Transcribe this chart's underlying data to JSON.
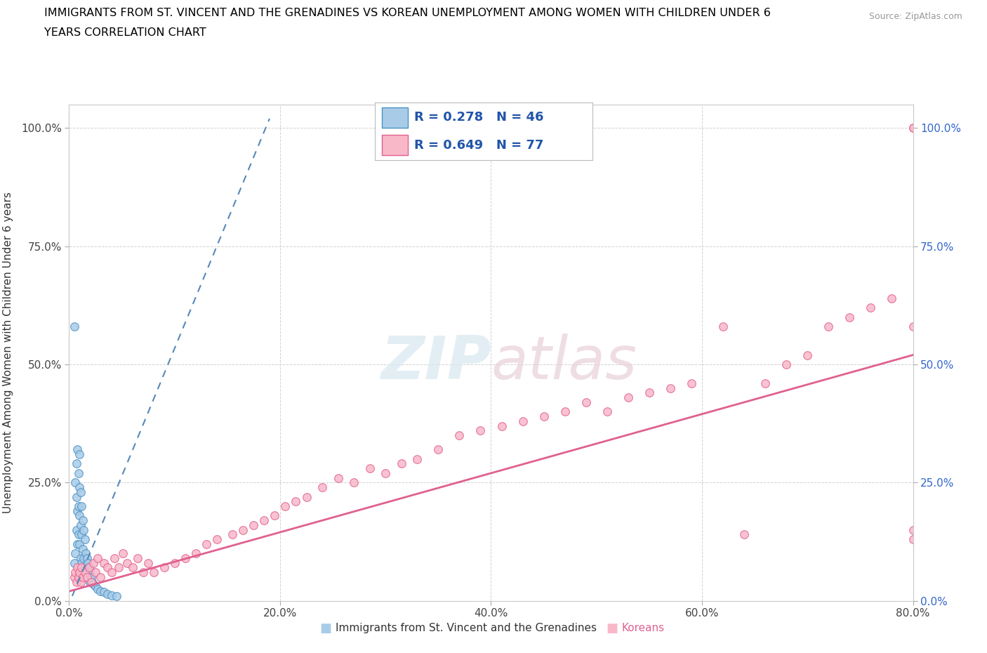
{
  "title_line1": "IMMIGRANTS FROM ST. VINCENT AND THE GRENADINES VS KOREAN UNEMPLOYMENT AMONG WOMEN WITH CHILDREN UNDER 6",
  "title_line2": "YEARS CORRELATION CHART",
  "source": "Source: ZipAtlas.com",
  "ylabel": "Unemployment Among Women with Children Under 6 years",
  "xlim": [
    0.0,
    0.8
  ],
  "ylim": [
    0.0,
    1.05
  ],
  "xticks": [
    0.0,
    0.2,
    0.4,
    0.6,
    0.8
  ],
  "xtick_labels": [
    "0.0%",
    "20.0%",
    "40.0%",
    "60.0%",
    "80.0%"
  ],
  "yticks": [
    0.0,
    0.25,
    0.5,
    0.75,
    1.0
  ],
  "ytick_labels": [
    "0.0%",
    "25.0%",
    "50.0%",
    "75.0%",
    "100.0%"
  ],
  "legend_R1": "0.278",
  "legend_N1": "46",
  "legend_R2": "0.649",
  "legend_N2": "77",
  "blue_face": "#a8cce8",
  "blue_edge": "#4a90c4",
  "pink_face": "#f9b8c8",
  "pink_edge": "#e06090",
  "blue_trend_color": "#5588bb",
  "pink_trend_color": "#e06090",
  "blue_scatter_x": [
    0.005,
    0.005,
    0.006,
    0.006,
    0.007,
    0.007,
    0.007,
    0.008,
    0.008,
    0.008,
    0.009,
    0.009,
    0.009,
    0.01,
    0.01,
    0.01,
    0.01,
    0.01,
    0.011,
    0.011,
    0.011,
    0.012,
    0.012,
    0.012,
    0.013,
    0.013,
    0.014,
    0.014,
    0.015,
    0.015,
    0.016,
    0.017,
    0.018,
    0.019,
    0.02,
    0.02,
    0.021,
    0.022,
    0.023,
    0.025,
    0.027,
    0.03,
    0.033,
    0.036,
    0.04,
    0.045
  ],
  "blue_scatter_y": [
    0.58,
    0.08,
    0.25,
    0.1,
    0.29,
    0.22,
    0.15,
    0.32,
    0.19,
    0.12,
    0.27,
    0.2,
    0.14,
    0.31,
    0.24,
    0.18,
    0.12,
    0.06,
    0.23,
    0.16,
    0.09,
    0.2,
    0.14,
    0.08,
    0.17,
    0.11,
    0.15,
    0.09,
    0.13,
    0.07,
    0.1,
    0.09,
    0.08,
    0.07,
    0.06,
    0.04,
    0.05,
    0.04,
    0.035,
    0.03,
    0.025,
    0.02,
    0.018,
    0.015,
    0.012,
    0.01
  ],
  "pink_scatter_x": [
    0.005,
    0.006,
    0.007,
    0.008,
    0.009,
    0.01,
    0.011,
    0.012,
    0.013,
    0.015,
    0.017,
    0.019,
    0.021,
    0.023,
    0.025,
    0.027,
    0.03,
    0.033,
    0.036,
    0.04,
    0.043,
    0.047,
    0.051,
    0.055,
    0.06,
    0.065,
    0.07,
    0.075,
    0.08,
    0.09,
    0.1,
    0.11,
    0.12,
    0.13,
    0.14,
    0.155,
    0.165,
    0.175,
    0.185,
    0.195,
    0.205,
    0.215,
    0.225,
    0.24,
    0.255,
    0.27,
    0.285,
    0.3,
    0.315,
    0.33,
    0.35,
    0.37,
    0.39,
    0.41,
    0.43,
    0.45,
    0.47,
    0.49,
    0.51,
    0.53,
    0.55,
    0.57,
    0.59,
    0.62,
    0.64,
    0.66,
    0.68,
    0.7,
    0.72,
    0.74,
    0.76,
    0.78,
    0.8,
    0.8,
    0.8,
    0.8,
    0.8
  ],
  "pink_scatter_y": [
    0.05,
    0.06,
    0.04,
    0.07,
    0.05,
    0.06,
    0.04,
    0.07,
    0.05,
    0.06,
    0.05,
    0.07,
    0.04,
    0.08,
    0.06,
    0.09,
    0.05,
    0.08,
    0.07,
    0.06,
    0.09,
    0.07,
    0.1,
    0.08,
    0.07,
    0.09,
    0.06,
    0.08,
    0.06,
    0.07,
    0.08,
    0.09,
    0.1,
    0.12,
    0.13,
    0.14,
    0.15,
    0.16,
    0.17,
    0.18,
    0.2,
    0.21,
    0.22,
    0.24,
    0.26,
    0.25,
    0.28,
    0.27,
    0.29,
    0.3,
    0.32,
    0.35,
    0.36,
    0.37,
    0.38,
    0.39,
    0.4,
    0.42,
    0.4,
    0.43,
    0.44,
    0.45,
    0.46,
    0.58,
    0.14,
    0.46,
    0.5,
    0.52,
    0.58,
    0.6,
    0.62,
    0.64,
    1.0,
    1.0,
    0.58,
    0.15,
    0.13
  ],
  "blue_trend_x": [
    0.003,
    0.19
  ],
  "blue_trend_y": [
    0.01,
    1.02
  ],
  "pink_trend_x": [
    0.0,
    0.8
  ],
  "pink_trend_y": [
    0.02,
    0.52
  ]
}
